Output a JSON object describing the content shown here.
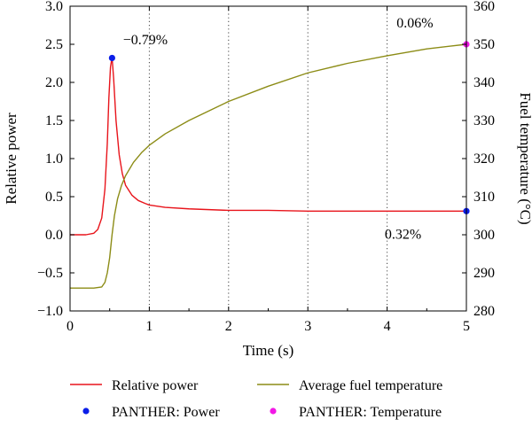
{
  "chart_data": {
    "type": "line",
    "xlabel": "Time (s)",
    "ylabel_left": "Relative power",
    "ylabel_right": "Fuel temperature (°C)",
    "xlim": [
      0,
      5
    ],
    "ylim_left": [
      -1.0,
      3.0
    ],
    "ylim_right": [
      280,
      360
    ],
    "x_ticks": [
      "0",
      "1",
      "2",
      "3",
      "4",
      "5"
    ],
    "y_left_ticks": [
      "−1.0",
      "−0.5",
      "0.0",
      "0.5",
      "1.0",
      "1.5",
      "2.0",
      "2.5",
      "3.0"
    ],
    "y_right_ticks": [
      "280",
      "290",
      "300",
      "310",
      "320",
      "330",
      "340",
      "350",
      "360"
    ],
    "grid": "dotted vertical at x ticks",
    "legend_position": "bottom",
    "series": [
      {
        "name": "Relative power",
        "axis": "left",
        "color": "#e8141b",
        "style": "line",
        "x": [
          0,
          0.2,
          0.3,
          0.35,
          0.4,
          0.44,
          0.47,
          0.49,
          0.51,
          0.53,
          0.55,
          0.58,
          0.62,
          0.66,
          0.7,
          0.78,
          0.86,
          0.95,
          1.0,
          1.2,
          1.5,
          2.0,
          2.5,
          3.0,
          4.0,
          5.0
        ],
        "values": [
          0.0,
          0.0,
          0.02,
          0.07,
          0.22,
          0.6,
          1.2,
          1.8,
          2.2,
          2.33,
          2.05,
          1.5,
          1.05,
          0.8,
          0.65,
          0.52,
          0.45,
          0.41,
          0.39,
          0.36,
          0.34,
          0.32,
          0.32,
          0.31,
          0.31,
          0.31
        ]
      },
      {
        "name": "Average fuel temperature",
        "axis": "right",
        "color": "#8c8c16",
        "style": "line",
        "x": [
          0,
          0.3,
          0.4,
          0.44,
          0.47,
          0.5,
          0.53,
          0.56,
          0.6,
          0.65,
          0.7,
          0.8,
          0.9,
          1.0,
          1.2,
          1.5,
          2.0,
          2.5,
          3.0,
          3.5,
          4.0,
          4.5,
          5.0
        ],
        "values": [
          286.0,
          286.0,
          286.3,
          287.5,
          290.0,
          294.0,
          300.0,
          305.0,
          309.5,
          313.0,
          315.5,
          319.0,
          321.5,
          323.5,
          326.5,
          330.0,
          335.0,
          339.0,
          342.5,
          345.0,
          347.0,
          348.8,
          350.0
        ]
      },
      {
        "name": "PANTHER: Power",
        "axis": "left",
        "color": "#0b1ee8",
        "style": "marker",
        "x": [
          0.53,
          5.0
        ],
        "values": [
          2.32,
          0.31
        ]
      },
      {
        "name": "PANTHER: Temperature",
        "axis": "right",
        "color": "#f218e6",
        "style": "marker",
        "x": [
          5.0
        ],
        "values": [
          350.0
        ]
      }
    ],
    "annotations": [
      {
        "text": "−0.79%",
        "x": 0.95,
        "y_axis": "left",
        "y": 2.5
      },
      {
        "text": "0.06%",
        "x": 4.35,
        "y_axis": "left",
        "y": 2.72
      },
      {
        "text": "0.32%",
        "x": 4.2,
        "y_axis": "left",
        "y": -0.05
      }
    ]
  }
}
